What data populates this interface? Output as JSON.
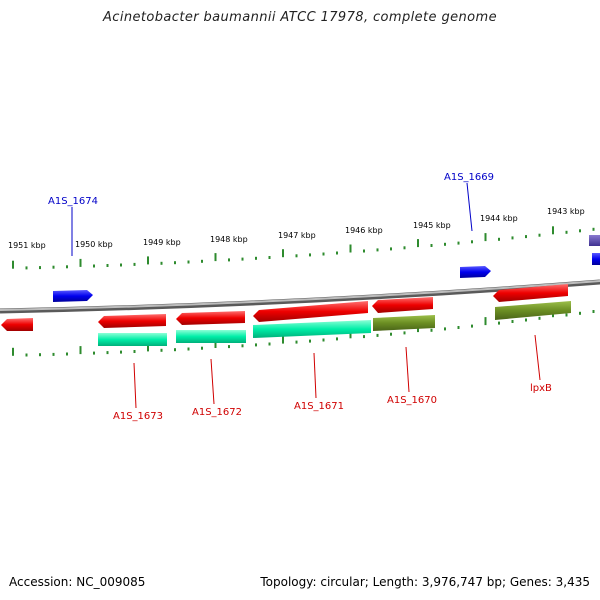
{
  "title": "Acinetobacter baumannii ATCC 17978, complete genome",
  "accession": "Accession: NC_009085",
  "summary": "Topology: circular; Length: 3,976,747 bp; Genes: 3,435",
  "scale_labels": [
    "1951 kbp",
    "1950 kbp",
    "1949 kbp",
    "1948 kbp",
    "1947 kbp",
    "1946 kbp",
    "1945 kbp",
    "1944 kbp",
    "1943 kbp"
  ],
  "gene_labels": {
    "A1S_1674": "A1S_1674",
    "A1S_1669": "A1S_1669",
    "A1S_1673": "A1S_1673",
    "A1S_1672": "A1S_1672",
    "A1S_1671": "A1S_1671",
    "A1S_1670": "A1S_1670",
    "lpxB": "lpxB"
  },
  "colors": {
    "forward_gene": "#0000ee",
    "reverse_gene": "#ee0000",
    "cds_cyan": "#00e8a0",
    "cds_olive": "#6b8e23",
    "tick": "#2e8b2e",
    "backbone": "#8a8a8a",
    "label_red": "#d00000",
    "label_blue": "#0000c8"
  }
}
